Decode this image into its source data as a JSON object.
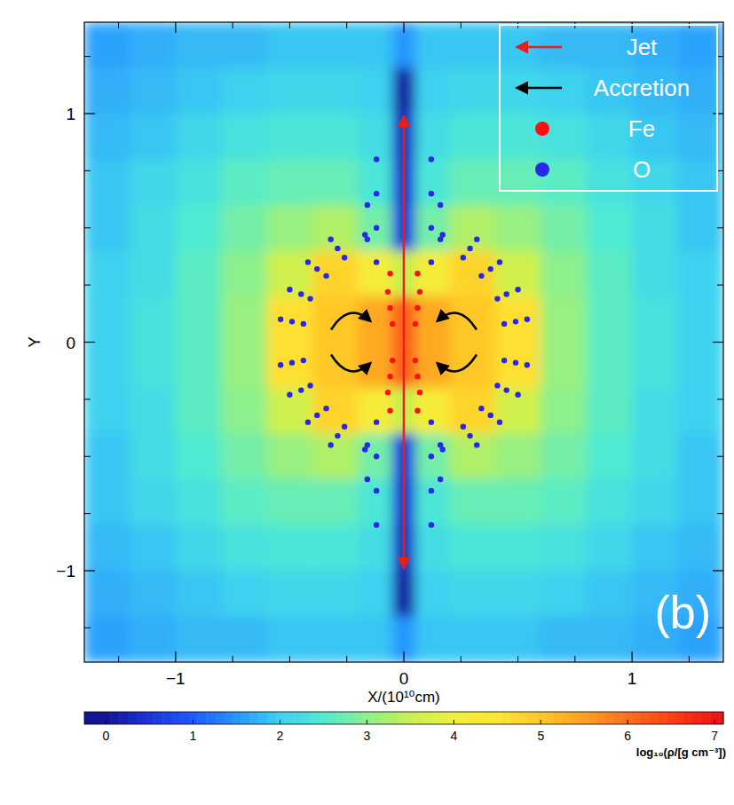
{
  "chart_data": {
    "type": "heatmap",
    "xlabel": "X/(10¹⁰cm)",
    "ylabel": "Y",
    "panel_label": "(b)",
    "xlim": [
      -1.4,
      1.4
    ],
    "ylim": [
      -1.4,
      1.4
    ],
    "xticks": [
      {
        "value": -1,
        "label": "−1"
      },
      0,
      1
    ],
    "yticks": [
      {
        "value": -1,
        "label": "−1"
      },
      0,
      1
    ],
    "xminor": [
      -1.25,
      -0.75,
      -0.5,
      -0.25,
      0.25,
      0.5,
      0.75,
      1.25
    ],
    "yminor": [
      -1.25,
      -0.75,
      -0.5,
      -0.25,
      0.25,
      0.5,
      0.75,
      1.25
    ],
    "x_edges": [
      -1.4,
      -1.2,
      -1.0,
      -0.8,
      -0.6,
      -0.4,
      -0.2,
      -0.05,
      0.05,
      0.2,
      0.4,
      0.6,
      0.8,
      1.0,
      1.2,
      1.4
    ],
    "y_edges": [
      1.4,
      1.2,
      1.0,
      0.8,
      0.6,
      0.4,
      0.2,
      0.0,
      -0.2,
      -0.4,
      -0.6,
      -0.8,
      -1.0,
      -1.2,
      -1.4
    ],
    "cells": [
      [
        1.6,
        1.7,
        1.8,
        1.8,
        1.9,
        1.9,
        1.9,
        1.5,
        1.9,
        1.9,
        1.9,
        1.8,
        1.8,
        1.7,
        1.6
      ],
      [
        1.7,
        1.8,
        1.9,
        2.0,
        2.1,
        2.1,
        2.0,
        0.1,
        2.0,
        2.1,
        2.1,
        2.0,
        1.9,
        1.8,
        1.7
      ],
      [
        1.8,
        1.9,
        2.1,
        2.3,
        2.4,
        2.4,
        2.2,
        0.3,
        2.2,
        2.4,
        2.4,
        2.3,
        2.1,
        1.9,
        1.8
      ],
      [
        1.9,
        2.1,
        2.3,
        2.6,
        2.7,
        2.7,
        2.4,
        0.4,
        2.4,
        2.7,
        2.7,
        2.6,
        2.3,
        2.1,
        1.9
      ],
      [
        1.9,
        2.2,
        2.5,
        2.8,
        3.1,
        3.3,
        2.8,
        0.5,
        2.8,
        3.3,
        3.1,
        2.8,
        2.5,
        2.2,
        1.9
      ],
      [
        2.0,
        2.2,
        2.6,
        3.0,
        3.6,
        4.8,
        4.2,
        3.5,
        4.2,
        4.8,
        3.6,
        3.0,
        2.6,
        2.2,
        2.0
      ],
      [
        2.0,
        2.3,
        2.6,
        3.1,
        4.6,
        5.0,
        5.4,
        6.2,
        5.4,
        5.0,
        4.6,
        3.1,
        2.6,
        2.3,
        2.0
      ],
      [
        2.0,
        2.3,
        2.6,
        3.1,
        4.6,
        5.0,
        5.4,
        6.2,
        5.4,
        5.0,
        4.6,
        3.1,
        2.6,
        2.3,
        2.0
      ],
      [
        2.0,
        2.2,
        2.6,
        3.0,
        3.6,
        4.8,
        4.2,
        3.5,
        4.2,
        4.8,
        3.6,
        3.0,
        2.6,
        2.2,
        2.0
      ],
      [
        1.9,
        2.2,
        2.5,
        2.8,
        3.1,
        3.3,
        2.8,
        0.5,
        2.8,
        3.3,
        3.1,
        2.8,
        2.5,
        2.2,
        1.9
      ],
      [
        1.9,
        2.1,
        2.3,
        2.6,
        2.7,
        2.7,
        2.4,
        0.4,
        2.4,
        2.7,
        2.7,
        2.6,
        2.3,
        2.1,
        1.9
      ],
      [
        1.8,
        1.9,
        2.1,
        2.3,
        2.4,
        2.4,
        2.2,
        0.3,
        2.2,
        2.4,
        2.4,
        2.3,
        2.1,
        1.9,
        1.8
      ],
      [
        1.7,
        1.8,
        1.9,
        2.0,
        2.1,
        2.1,
        2.0,
        0.1,
        2.0,
        2.1,
        2.1,
        2.0,
        1.9,
        1.8,
        1.7
      ],
      [
        1.6,
        1.7,
        1.8,
        1.8,
        1.9,
        1.9,
        1.9,
        1.5,
        1.9,
        1.9,
        1.9,
        1.8,
        1.8,
        1.7,
        1.6
      ]
    ],
    "colorbar": {
      "range": [
        -0.25,
        7.1
      ],
      "ticks": [
        0,
        1,
        2,
        3,
        4,
        5,
        6,
        7
      ],
      "label": "log₁₀(ρ/[g cm⁻³])"
    },
    "annotations": [
      {
        "text": "Jet",
        "color": "#e81e1e"
      },
      {
        "text": "Accretion",
        "color": "#000000"
      }
    ],
    "legend": "upper right",
    "series": [
      {
        "name": "Fe",
        "color": "#ff1010",
        "marker": "circle",
        "type": "scatter",
        "x": [
          0.05,
          0.06,
          0.07,
          0.06,
          -0.05,
          -0.06,
          -0.07,
          -0.06,
          -0.05,
          -0.06,
          -0.07,
          -0.06,
          0.05,
          0.06,
          0.07,
          0.06
        ],
        "y": [
          0.08,
          0.15,
          0.22,
          0.3,
          0.08,
          0.15,
          0.22,
          0.3,
          -0.08,
          -0.15,
          -0.22,
          -0.3,
          -0.08,
          -0.15,
          -0.22,
          -0.3
        ]
      },
      {
        "name": "O",
        "color": "#2828e6",
        "marker": "circle",
        "type": "scatter",
        "x": [
          0.44,
          0.41,
          0.34,
          0.26,
          0.49,
          0.45,
          0.38,
          0.29,
          0.54,
          0.5,
          0.42,
          0.32,
          0.17,
          0.12,
          0.12,
          0.12,
          0.12,
          0.16,
          0.16,
          -0.44,
          -0.41,
          -0.34,
          -0.26,
          -0.49,
          -0.45,
          -0.38,
          -0.29,
          -0.54,
          -0.5,
          -0.42,
          -0.32,
          -0.17,
          -0.12,
          -0.12,
          -0.12,
          -0.12,
          -0.16,
          -0.16,
          -0.44,
          -0.41,
          -0.34,
          -0.26,
          -0.49,
          -0.45,
          -0.38,
          -0.29,
          -0.54,
          -0.5,
          -0.42,
          -0.32,
          -0.17,
          -0.12,
          -0.12,
          -0.12,
          -0.12,
          -0.16,
          -0.16,
          0.44,
          0.41,
          0.34,
          0.26,
          0.49,
          0.45,
          0.38,
          0.29,
          0.54,
          0.5,
          0.42,
          0.32,
          0.17,
          0.12,
          0.12,
          0.12,
          0.12,
          0.16,
          0.16
        ],
        "y": [
          0.08,
          0.19,
          0.29,
          0.37,
          0.09,
          0.21,
          0.32,
          0.41,
          0.1,
          0.23,
          0.35,
          0.45,
          0.47,
          0.35,
          0.5,
          0.65,
          0.8,
          0.45,
          0.6,
          0.08,
          0.19,
          0.29,
          0.37,
          0.09,
          0.21,
          0.32,
          0.41,
          0.1,
          0.23,
          0.35,
          0.45,
          0.47,
          0.35,
          0.5,
          0.65,
          0.8,
          0.45,
          0.6,
          -0.08,
          -0.19,
          -0.29,
          -0.37,
          -0.09,
          -0.21,
          -0.32,
          -0.41,
          -0.1,
          -0.23,
          -0.35,
          -0.45,
          -0.47,
          -0.35,
          -0.5,
          -0.65,
          -0.8,
          -0.45,
          -0.6,
          -0.08,
          -0.19,
          -0.29,
          -0.37,
          -0.09,
          -0.21,
          -0.32,
          -0.41,
          -0.1,
          -0.23,
          -0.35,
          -0.45,
          -0.47,
          -0.35,
          -0.5,
          -0.65,
          -0.8,
          -0.45,
          -0.6
        ]
      }
    ]
  }
}
